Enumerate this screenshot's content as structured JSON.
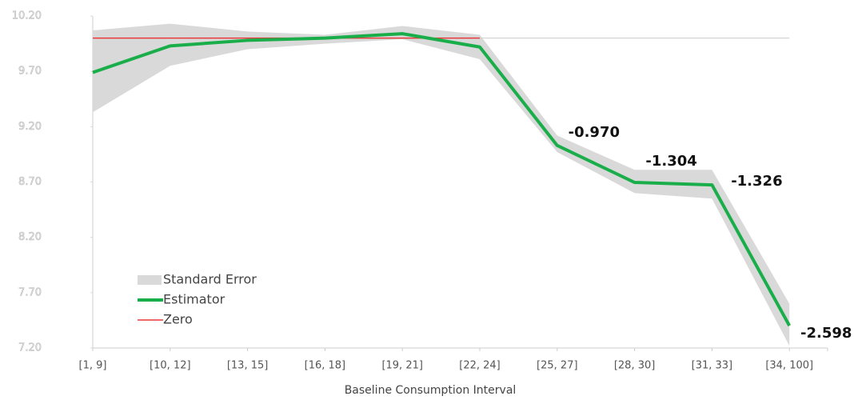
{
  "chart_data": {
    "type": "line",
    "x_label": "Baseline Consumption Interval",
    "categories": [
      "[1, 9]",
      "[10, 12]",
      "[13, 15]",
      "[16, 18]",
      "[19, 21]",
      "[22, 24]",
      "[25, 27]",
      "[28, 30]",
      "[31, 33]",
      "[34, 100]"
    ],
    "error_band": {
      "name": "Standard Error",
      "color": "#d9d9d9",
      "upper": [
        10.07,
        10.13,
        10.06,
        10.03,
        10.11,
        10.03,
        9.12,
        8.81,
        8.81,
        7.6
      ],
      "lower": [
        9.33,
        9.75,
        9.9,
        9.95,
        9.99,
        9.81,
        8.97,
        8.6,
        8.55,
        7.22
      ]
    },
    "series": [
      {
        "name": "Estimator",
        "color": "#1aae4a",
        "values": [
          9.69,
          9.93,
          9.98,
          10.0,
          10.04,
          9.92,
          9.03,
          8.696,
          8.674,
          7.402
        ],
        "value_labels": [
          null,
          null,
          null,
          null,
          null,
          null,
          "-0.970",
          "-1.304",
          "-1.326",
          "-2.598"
        ]
      },
      {
        "name": "Zero",
        "color": "#e83a3a",
        "values": [
          10.0,
          10.0,
          10.0,
          10.0,
          10.0,
          10.0,
          null,
          null,
          null,
          null
        ]
      }
    ],
    "ylim": [
      7.2,
      10.2
    ],
    "yticks": [
      {
        "value": 7.2,
        "label": "7.20"
      },
      {
        "value": 7.7,
        "label": "7.70"
      },
      {
        "value": 8.2,
        "label": "8.20"
      },
      {
        "value": 8.7,
        "label": "8.70"
      },
      {
        "value": 9.2,
        "label": "9.20"
      },
      {
        "value": 9.7,
        "label": "9.70"
      },
      {
        "value": 10.2,
        "label": "10.20"
      }
    ],
    "legend": "lower left"
  }
}
